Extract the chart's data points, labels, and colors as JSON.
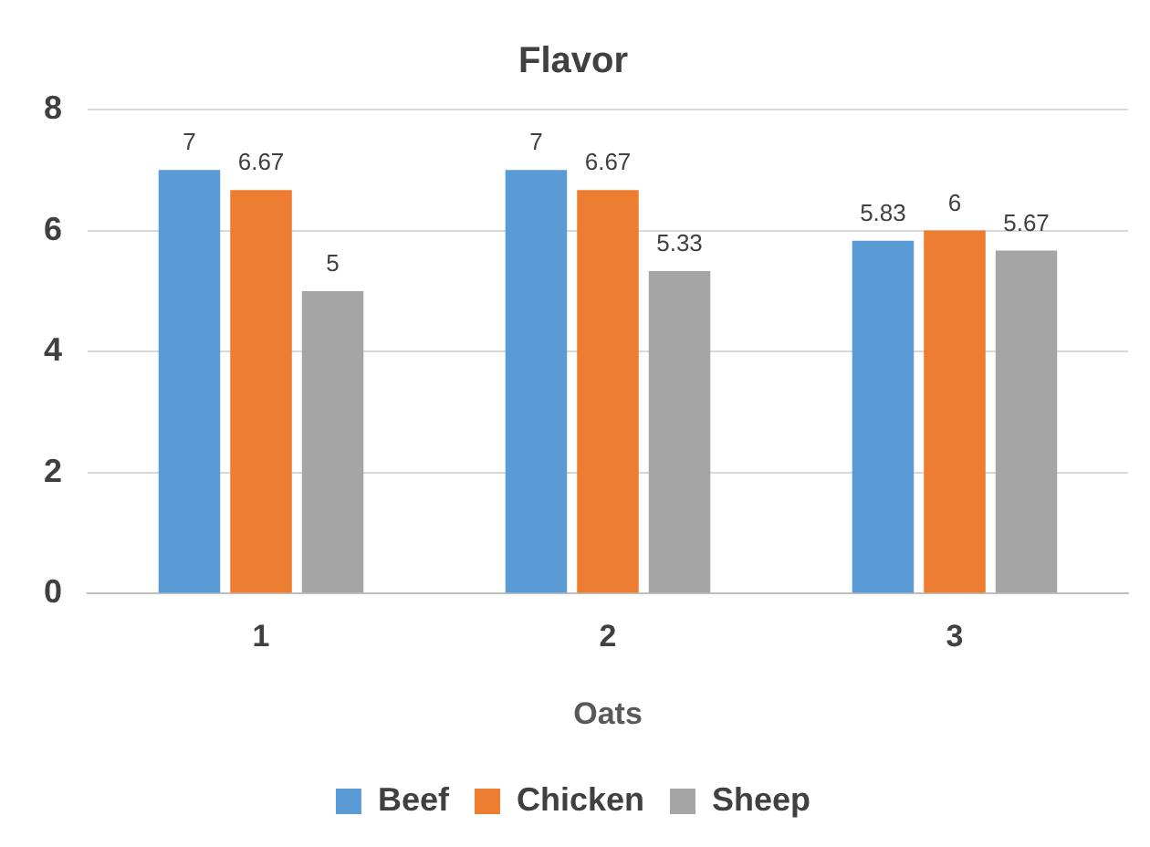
{
  "chart_data": {
    "type": "bar",
    "title": "Flavor",
    "xlabel": "Oats",
    "categories": [
      "1",
      "2",
      "3"
    ],
    "series": [
      {
        "name": "Beef",
        "color": "#5b9bd5",
        "values": [
          7,
          7,
          5.83
        ]
      },
      {
        "name": "Chicken",
        "color": "#ed7d31",
        "values": [
          6.67,
          6.67,
          6
        ]
      },
      {
        "name": "Sheep",
        "color": "#a5a5a5",
        "values": [
          5,
          5.33,
          5.67
        ]
      }
    ],
    "ylim": [
      0,
      8
    ],
    "yticks": [
      0,
      2,
      4,
      6,
      8
    ],
    "grid": "y",
    "legend": "bottom",
    "data_labels": true
  }
}
